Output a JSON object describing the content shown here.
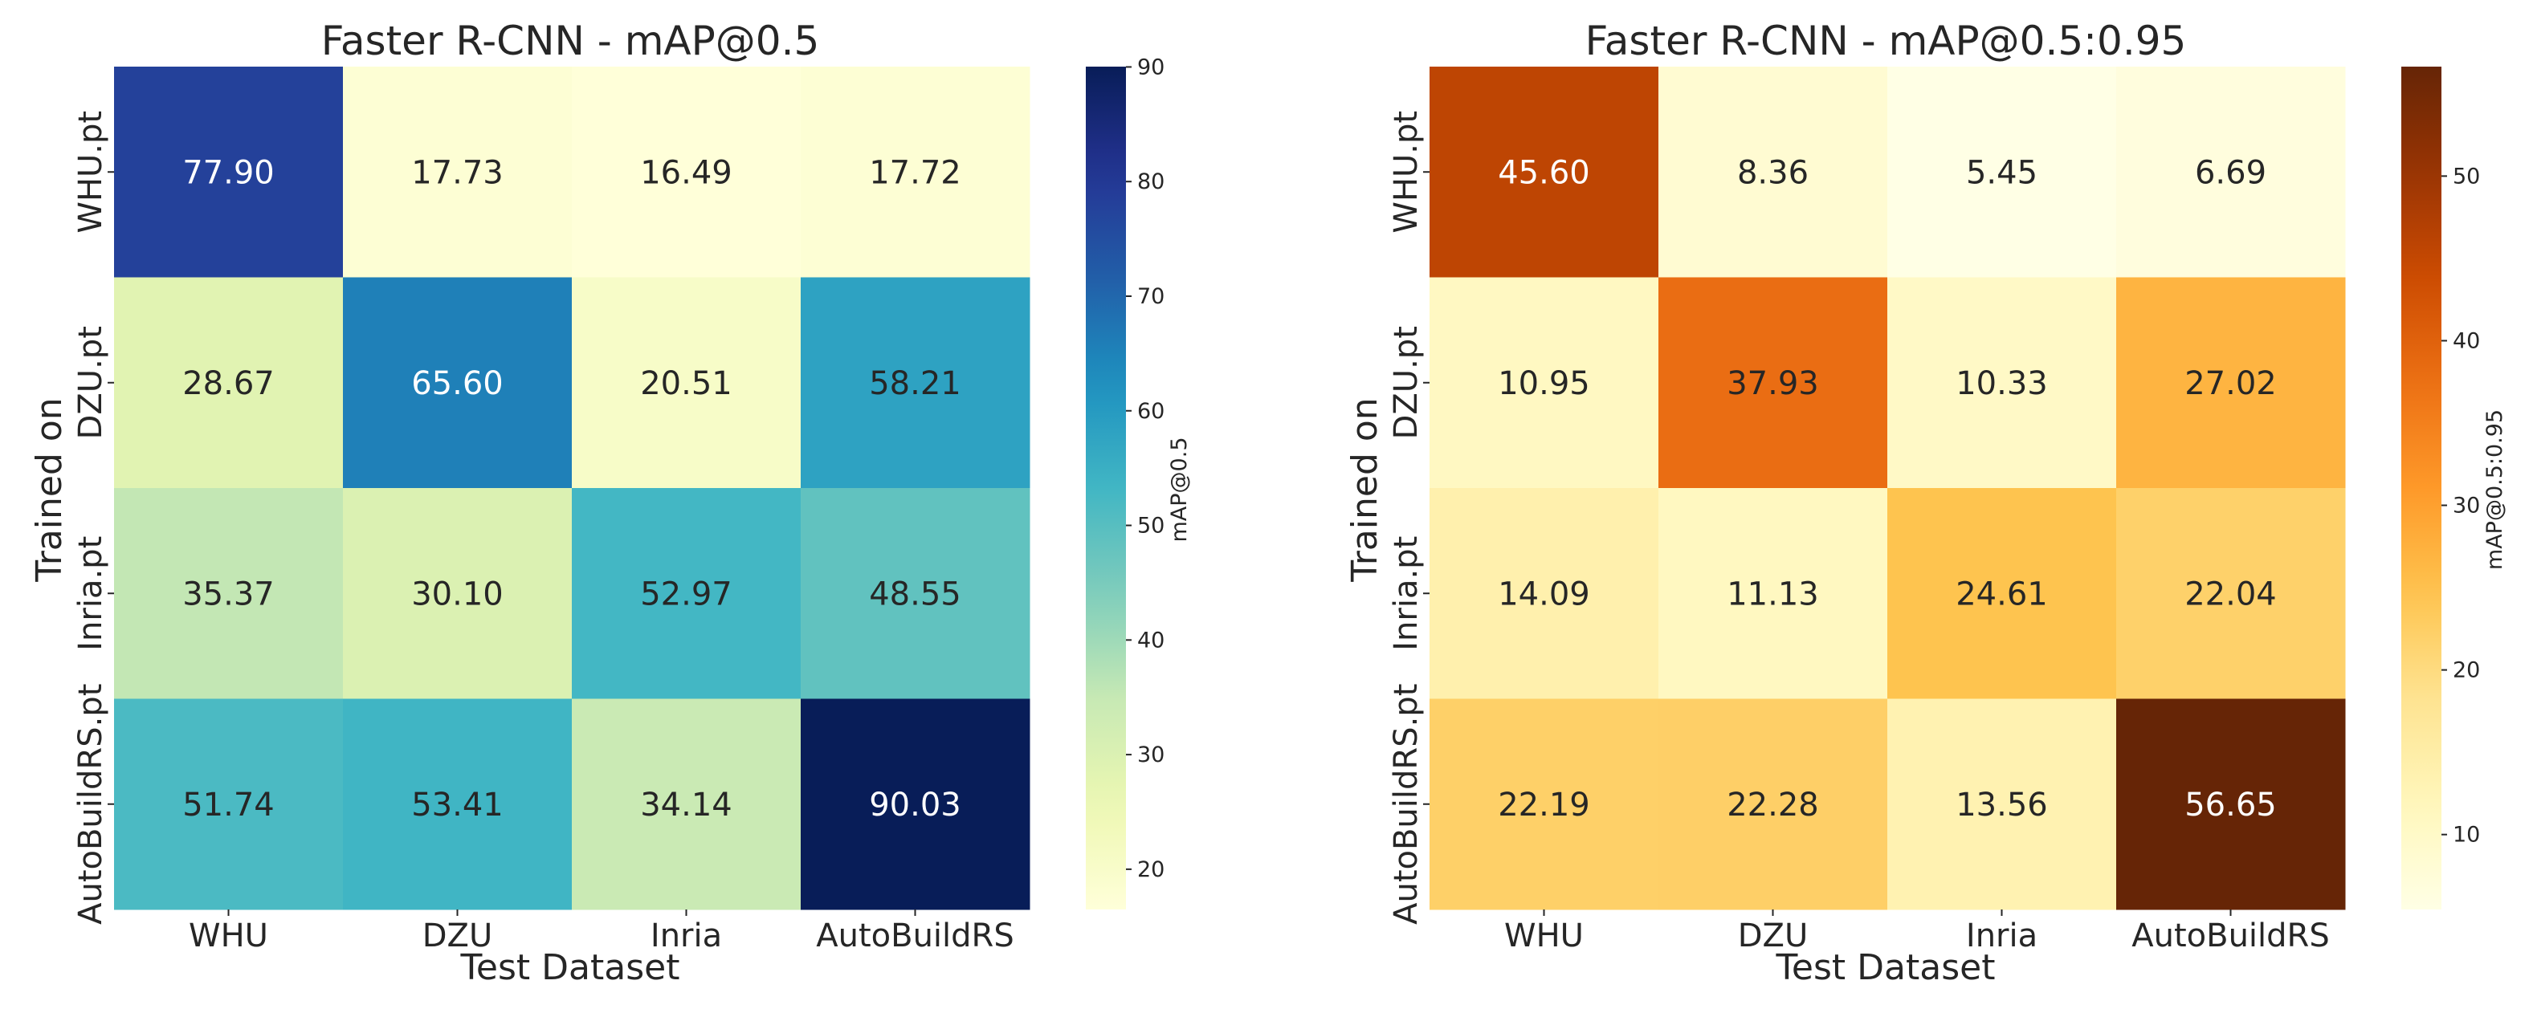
{
  "chart_data": [
    {
      "type": "heatmap",
      "title": "Faster R-CNN - mAP@0.5",
      "xlabel": "Test Dataset",
      "ylabel": "Trained on",
      "x_categories": [
        "WHU",
        "DZU",
        "Inria",
        "AutoBuildRS"
      ],
      "y_categories": [
        "WHU.pt",
        "DZU.pt",
        "Inria.pt",
        "AutoBuildRS.pt"
      ],
      "values": [
        [
          77.9,
          17.73,
          16.49,
          17.72
        ],
        [
          28.67,
          65.6,
          20.51,
          58.21
        ],
        [
          35.37,
          30.1,
          52.97,
          48.55
        ],
        [
          51.74,
          53.41,
          34.14,
          90.03
        ]
      ],
      "value_labels": [
        [
          "77.90",
          "17.73",
          "16.49",
          "17.72"
        ],
        [
          "28.67",
          "65.60",
          "20.51",
          "58.21"
        ],
        [
          "35.37",
          "30.10",
          "52.97",
          "48.55"
        ],
        [
          "51.74",
          "53.41",
          "34.14",
          "90.03"
        ]
      ],
      "colormap": "YlGnBu",
      "colorbar": {
        "label": "mAP@0.5",
        "vmin": 16.49,
        "vmax": 90.03,
        "ticks": [
          20,
          30,
          40,
          50,
          60,
          70,
          80,
          90
        ],
        "tick_labels": [
          "20",
          "30",
          "40",
          "50",
          "60",
          "70",
          "80",
          "90"
        ]
      }
    },
    {
      "type": "heatmap",
      "title": "Faster R-CNN - mAP@0.5:0.95",
      "xlabel": "Test Dataset",
      "ylabel": "Trained on",
      "x_categories": [
        "WHU",
        "DZU",
        "Inria",
        "AutoBuildRS"
      ],
      "y_categories": [
        "WHU.pt",
        "DZU.pt",
        "Inria.pt",
        "AutoBuildRS.pt"
      ],
      "values": [
        [
          45.6,
          8.36,
          5.45,
          6.69
        ],
        [
          10.95,
          37.93,
          10.33,
          27.02
        ],
        [
          14.09,
          11.13,
          24.61,
          22.04
        ],
        [
          22.19,
          22.28,
          13.56,
          56.65
        ]
      ],
      "value_labels": [
        [
          "45.60",
          "8.36",
          "5.45",
          "6.69"
        ],
        [
          "10.95",
          "37.93",
          "10.33",
          "27.02"
        ],
        [
          "14.09",
          "11.13",
          "24.61",
          "22.04"
        ],
        [
          "22.19",
          "22.28",
          "13.56",
          "56.65"
        ]
      ],
      "colormap": "YlOrBr",
      "colorbar": {
        "label": "mAP@0.5:0.95",
        "vmin": 5.45,
        "vmax": 56.65,
        "ticks": [
          10,
          20,
          30,
          40,
          50
        ],
        "tick_labels": [
          "10",
          "20",
          "30",
          "40",
          "50"
        ]
      }
    }
  ]
}
